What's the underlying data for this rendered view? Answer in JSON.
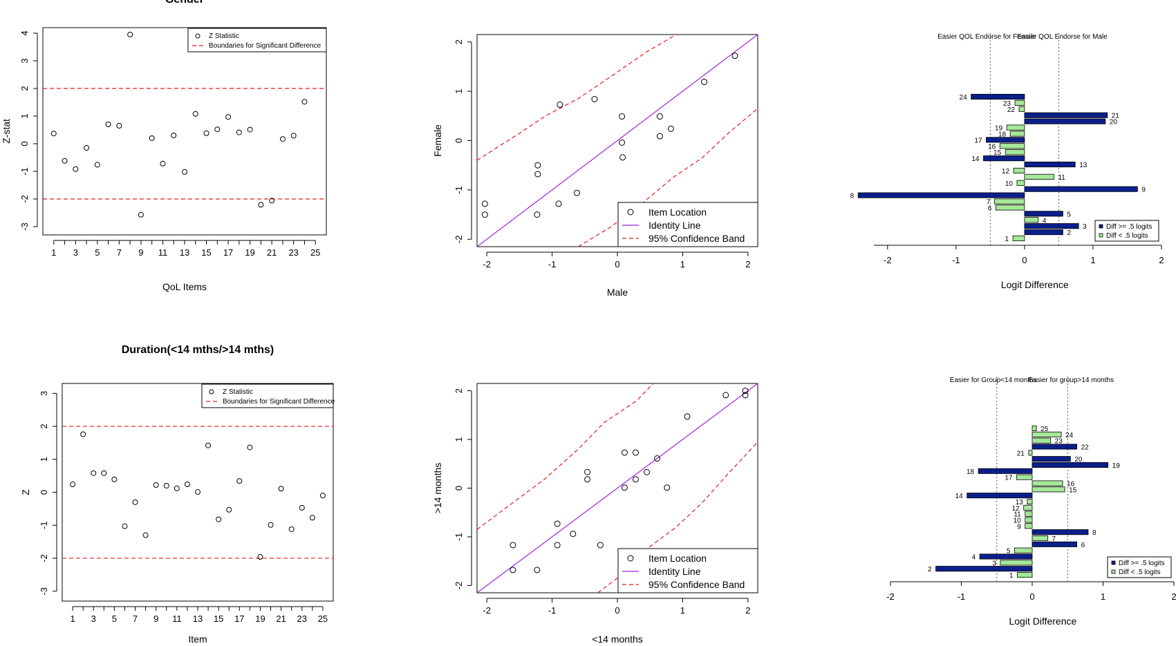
{
  "chart_data": [
    {
      "id": "p1",
      "type": "scatter",
      "title": "Gender",
      "xlabel": "QoL Items",
      "ylabel": "Z-stat",
      "xlim": [
        0,
        26
      ],
      "ylim": [
        -3.3,
        4.2
      ],
      "xticks": [
        1,
        2,
        3,
        4,
        5,
        6,
        7,
        8,
        9,
        10,
        11,
        12,
        13,
        14,
        15,
        16,
        17,
        18,
        19,
        20,
        21,
        22,
        23,
        24,
        25
      ],
      "xtick_labels": [
        "1",
        "",
        "3",
        "",
        "5",
        "",
        "7",
        "",
        "9",
        "",
        "11",
        "",
        "13",
        "",
        "15",
        "",
        "17",
        "",
        "19",
        "",
        "21",
        "",
        "23",
        "",
        "25"
      ],
      "yticks": [
        -3,
        -2,
        -1,
        0,
        1,
        2,
        3,
        4
      ],
      "ytick_labels": [
        "-3",
        "-2",
        "-1",
        "0",
        "1",
        "2",
        "3",
        "4"
      ],
      "boundaries": [
        2,
        -2
      ],
      "legend": [
        "Z Statistic",
        "Boundaries for Significant Difference"
      ],
      "x": [
        1,
        2,
        3,
        4,
        5,
        6,
        7,
        8,
        9,
        10,
        11,
        12,
        13,
        14,
        15,
        16,
        17,
        18,
        19,
        20,
        21,
        22,
        23,
        24
      ],
      "y": [
        0.37,
        -0.62,
        -0.92,
        -0.15,
        -0.76,
        0.7,
        0.65,
        3.95,
        -2.57,
        0.2,
        -0.72,
        0.3,
        -1.02,
        1.08,
        0.38,
        0.52,
        0.97,
        0.41,
        0.51,
        -2.21,
        -2.06,
        0.17,
        0.29,
        1.52
      ]
    },
    {
      "id": "p2",
      "type": "scatter",
      "xlabel": "Male",
      "ylabel": "Female",
      "xlim": [
        -2.15,
        2.15
      ],
      "ylim": [
        -2.15,
        2.15
      ],
      "xticks": [
        -2,
        -1,
        0,
        1,
        2
      ],
      "xtick_labels": [
        "-2",
        "-1",
        "0",
        "1",
        "2"
      ],
      "yticks": [
        -2,
        -1,
        0,
        1,
        2
      ],
      "ytick_labels": [
        "-2",
        "-1",
        "0",
        "1",
        "2"
      ],
      "legend": [
        "Item Location",
        "Identity Line",
        "95% Confidence Band"
      ],
      "x": [
        -2.03,
        -2.03,
        -1.23,
        -1.22,
        -1.22,
        -0.9,
        -0.88,
        -0.62,
        -0.35,
        0.07,
        0.07,
        0.08,
        0.65,
        0.65,
        0.82,
        1.33,
        1.8
      ],
      "y": [
        -1.28,
        -1.5,
        -1.5,
        -0.5,
        -0.68,
        -1.28,
        0.73,
        -1.06,
        0.84,
        0.49,
        -0.04,
        -0.34,
        0.49,
        0.09,
        0.24,
        1.19,
        1.72
      ],
      "upper_band": [
        [
          -2.15,
          -0.4
        ],
        [
          -1.5,
          0.15
        ],
        [
          -1.1,
          0.5
        ],
        [
          -0.6,
          0.85
        ],
        [
          -0.1,
          1.3
        ],
        [
          0.45,
          1.8
        ],
        [
          0.9,
          2.15
        ]
      ],
      "lower_band": [
        [
          -0.6,
          -2.15
        ],
        [
          -0.1,
          -1.75
        ],
        [
          0.4,
          -1.25
        ],
        [
          0.85,
          -0.75
        ],
        [
          1.3,
          -0.35
        ],
        [
          1.7,
          0.15
        ],
        [
          2.15,
          0.65
        ]
      ]
    },
    {
      "id": "p3",
      "type": "bar",
      "orientation": "horizontal",
      "xlabel": "Logit Difference",
      "xlim": [
        -2.2,
        2.0
      ],
      "xticks": [
        -2,
        -1,
        0,
        1,
        2
      ],
      "xtick_labels": [
        "-2",
        "-1",
        "0",
        "1",
        "2"
      ],
      "ref_lines": [
        -0.5,
        0.5
      ],
      "annotations": [
        "Easier QOL Endorse for Female",
        "Easier QOL Endorse for Male"
      ],
      "legend": [
        "Diff >= .5 logits",
        "Diff < .5 logits"
      ],
      "items": [
        "24",
        "23",
        "22",
        "21",
        "20",
        "19",
        "18",
        "17",
        "16",
        "15",
        "14",
        "13",
        "12",
        "11",
        "10",
        "9",
        "8",
        "7",
        "6",
        "5",
        "4",
        "3",
        "2",
        "1"
      ],
      "values": [
        -0.78,
        -0.14,
        -0.08,
        1.21,
        1.18,
        -0.26,
        -0.21,
        -0.56,
        -0.36,
        -0.28,
        -0.6,
        0.74,
        -0.16,
        0.43,
        -0.11,
        1.65,
        -2.43,
        -0.44,
        -0.42,
        0.56,
        0.2,
        0.79,
        0.56,
        -0.17
      ],
      "large": [
        true,
        false,
        false,
        true,
        true,
        false,
        false,
        true,
        false,
        false,
        true,
        true,
        false,
        false,
        false,
        true,
        true,
        false,
        false,
        true,
        false,
        true,
        true,
        false
      ]
    },
    {
      "id": "p4",
      "type": "scatter",
      "title": "Duration(<14 mths/>14 mths)",
      "xlabel": "Item",
      "ylabel": "Z",
      "xlim": [
        0,
        26
      ],
      "ylim": [
        -3.3,
        3.3
      ],
      "xticks": [
        1,
        2,
        3,
        4,
        5,
        6,
        7,
        8,
        9,
        10,
        11,
        12,
        13,
        14,
        15,
        16,
        17,
        18,
        19,
        20,
        21,
        22,
        23,
        24,
        25
      ],
      "xtick_labels": [
        "1",
        "",
        "3",
        "",
        "5",
        "",
        "7",
        "",
        "9",
        "",
        "11",
        "",
        "13",
        "",
        "15",
        "",
        "17",
        "",
        "19",
        "",
        "21",
        "",
        "23",
        "",
        "25"
      ],
      "yticks": [
        -3,
        -2,
        -1,
        0,
        1,
        2,
        3
      ],
      "ytick_labels": [
        "-3",
        "-2",
        "-1",
        "0",
        "1",
        "2",
        "3"
      ],
      "boundaries": [
        2,
        -2
      ],
      "legend": [
        "Z Statistic",
        "Boundaries for Significant Difference"
      ],
      "x": [
        1,
        2,
        3,
        4,
        5,
        6,
        7,
        8,
        9,
        10,
        11,
        12,
        13,
        14,
        15,
        16,
        17,
        18,
        19,
        20,
        21,
        22,
        23,
        24,
        25
      ],
      "y": [
        0.24,
        1.76,
        0.58,
        0.58,
        0.39,
        -1.03,
        -0.3,
        -1.3,
        0.22,
        0.2,
        0.12,
        0.24,
        0.01,
        1.42,
        -0.82,
        -0.53,
        0.34,
        1.36,
        -1.96,
        -0.99,
        0.11,
        -1.12,
        -0.47,
        -0.77,
        -0.1
      ]
    },
    {
      "id": "p5",
      "type": "scatter",
      "xlabel": "<14 months",
      "ylabel": ">14 months",
      "xlim": [
        -2.15,
        2.15
      ],
      "ylim": [
        -2.15,
        2.15
      ],
      "xticks": [
        -2,
        -1,
        0,
        1,
        2
      ],
      "xtick_labels": [
        "-2",
        "-1",
        "0",
        "1",
        "2"
      ],
      "yticks": [
        -2,
        -1,
        0,
        1,
        2
      ],
      "ytick_labels": [
        "-2",
        "-1",
        "0",
        "1",
        "2"
      ],
      "legend": [
        "Item Location",
        "Identity Line",
        "95% Confidence Band"
      ],
      "x": [
        -1.6,
        -1.6,
        -1.23,
        -0.92,
        -0.92,
        -0.68,
        -0.46,
        -0.46,
        -0.26,
        0.11,
        0.11,
        0.28,
        0.28,
        0.45,
        0.61,
        0.76,
        1.07,
        1.66,
        1.96,
        1.96
      ],
      "y": [
        -1.17,
        -1.68,
        -1.68,
        -0.73,
        -1.17,
        -0.94,
        0.33,
        0.18,
        -1.17,
        0.73,
        0.01,
        0.18,
        0.73,
        0.33,
        0.61,
        0.01,
        1.47,
        1.91,
        2.0,
        1.91
      ],
      "upper_band": [
        [
          -2.15,
          -0.85
        ],
        [
          -1.6,
          -0.3
        ],
        [
          -1.1,
          0.2
        ],
        [
          -0.6,
          0.8
        ],
        [
          -0.2,
          1.35
        ],
        [
          0.3,
          1.8
        ],
        [
          0.55,
          2.15
        ]
      ],
      "lower_band": [
        [
          -0.3,
          -2.15
        ],
        [
          0.15,
          -1.7
        ],
        [
          0.5,
          -1.2
        ],
        [
          0.9,
          -0.8
        ],
        [
          1.3,
          -0.3
        ],
        [
          1.7,
          0.3
        ],
        [
          2.15,
          0.95
        ]
      ]
    },
    {
      "id": "p6",
      "type": "bar",
      "orientation": "horizontal",
      "xlabel": "Logit Difference",
      "xlim": [
        -2.0,
        2.0
      ],
      "xticks": [
        -2,
        -1,
        0,
        1,
        2
      ],
      "xtick_labels": [
        "-2",
        "-1",
        "0",
        "1",
        "2"
      ],
      "ref_lines": [
        -0.5,
        0.5
      ],
      "annotations": [
        "Easier  for Group<14 months",
        "Easier for group>14 months"
      ],
      "legend": [
        "Diff >= .5 logits",
        "Diff < .5 logits"
      ],
      "items": [
        "25",
        "24",
        "23",
        "22",
        "21",
        "20",
        "19",
        "18",
        "17",
        "16",
        "15",
        "14",
        "13",
        "12",
        "11",
        "10",
        "9",
        "8",
        "7",
        "6",
        "5",
        "4",
        "3",
        "2",
        "1"
      ],
      "values": [
        0.06,
        0.41,
        0.26,
        0.63,
        -0.05,
        0.54,
        1.07,
        -0.76,
        -0.22,
        0.43,
        0.46,
        -0.92,
        -0.07,
        -0.12,
        -0.1,
        -0.1,
        -0.1,
        0.79,
        0.22,
        0.63,
        -0.25,
        -0.74,
        -0.45,
        -1.36,
        -0.21
      ],
      "large": [
        false,
        false,
        false,
        true,
        false,
        true,
        true,
        true,
        false,
        false,
        false,
        true,
        false,
        false,
        false,
        false,
        false,
        true,
        false,
        true,
        false,
        true,
        false,
        true,
        false
      ]
    }
  ]
}
